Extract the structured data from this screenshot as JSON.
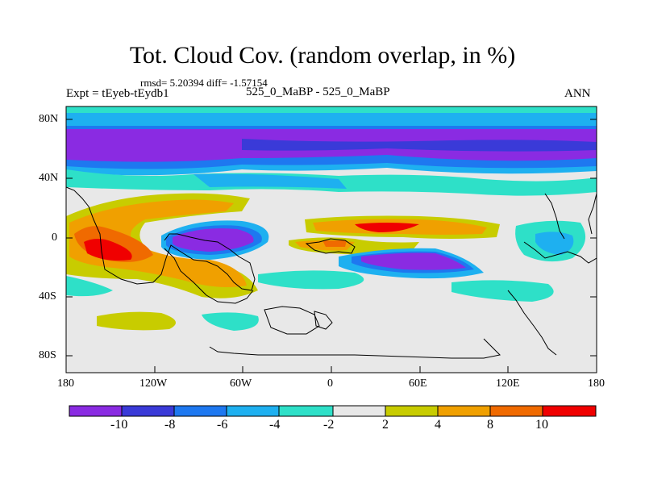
{
  "title": "Tot. Cloud Cov. (random overlap, in %)",
  "stats_line": "rmsd= 5.20394 diff= -1.57154",
  "left_label": "Expt = tEyeb-tEydb1",
  "center_label": "525_0_MaBP - 525_0_MaBP",
  "right_label": "ANN",
  "lat_ticks": [
    "80N",
    "40N",
    "0",
    "40S",
    "80S"
  ],
  "lon_ticks": [
    "180",
    "120W",
    "60W",
    "0",
    "60E",
    "120E",
    "180"
  ],
  "colorbar": {
    "labels": [
      "-10",
      "-8",
      "-6",
      "-4",
      "-2",
      "2",
      "4",
      "8",
      "10"
    ],
    "colors": [
      "#8a2be2",
      "#3a3ad8",
      "#1e78f0",
      "#1eb0f0",
      "#2ee0c8",
      "#e8e8e8",
      "#c8cc00",
      "#f0a000",
      "#f06a00",
      "#f00000"
    ]
  }
}
